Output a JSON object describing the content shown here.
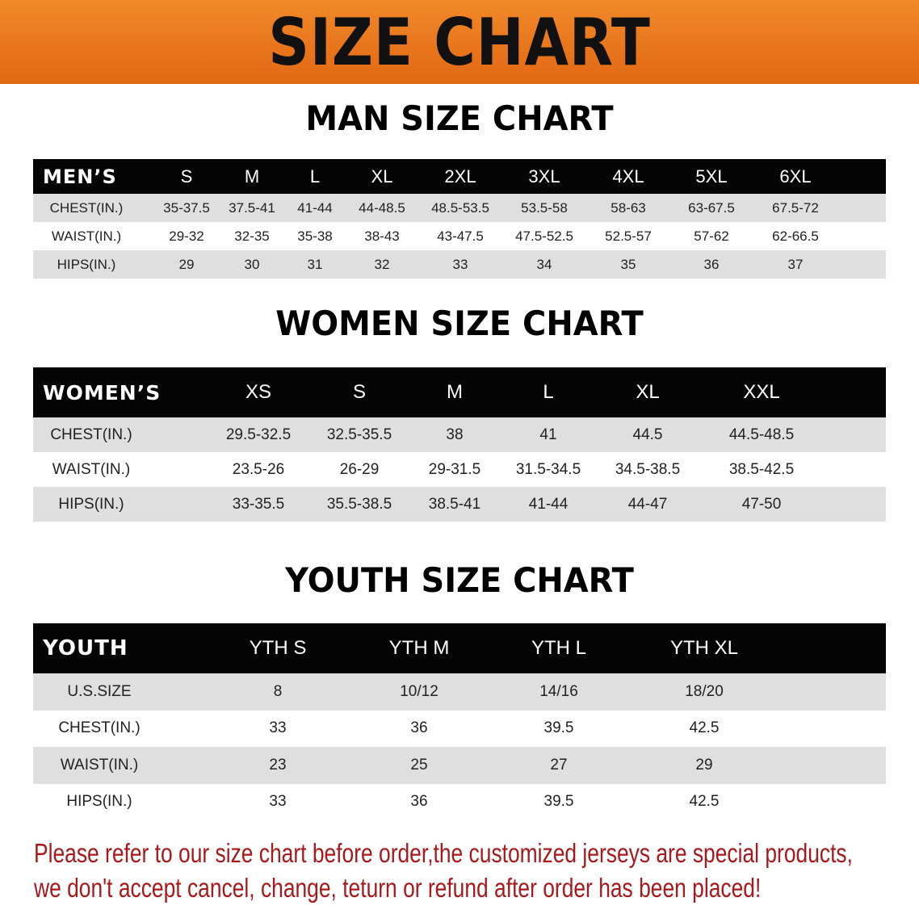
{
  "banner": {
    "title": "SIZE CHART"
  },
  "men": {
    "title": "MAN SIZE CHART",
    "header_label": "MEN’S",
    "sizes": [
      "S",
      "M",
      "L",
      "XL",
      "2XL",
      "3XL",
      "4XL",
      "5XL",
      "6XL"
    ],
    "rows": [
      {
        "label": "CHEST(IN.)",
        "values": [
          "35-37.5",
          "37.5-41",
          "41-44",
          "44-48.5",
          "48.5-53.5",
          "53.5-58",
          "58-63",
          "63-67.5",
          "67.5-72"
        ]
      },
      {
        "label": "WAIST(IN.)",
        "values": [
          "29-32",
          "32-35",
          "35-38",
          "38-43",
          "43-47.5",
          "47.5-52.5",
          "52.5-57",
          "57-62",
          "62-66.5"
        ]
      },
      {
        "label": "HIPS(IN.)",
        "values": [
          "29",
          "30",
          "31",
          "32",
          "33",
          "34",
          "35",
          "36",
          "37"
        ]
      }
    ]
  },
  "women": {
    "title": "WOMEN SIZE CHART",
    "header_label": "WOMEN’S",
    "sizes": [
      "XS",
      "S",
      "M",
      "L",
      "XL",
      "XXL"
    ],
    "rows": [
      {
        "label": "CHEST(IN.)",
        "values": [
          "29.5-32.5",
          "32.5-35.5",
          "38",
          "41",
          "44.5",
          "44.5-48.5"
        ]
      },
      {
        "label": "WAIST(IN.)",
        "values": [
          "23.5-26",
          "26-29",
          "29-31.5",
          "31.5-34.5",
          "34.5-38.5",
          "38.5-42.5"
        ]
      },
      {
        "label": "HIPS(IN.)",
        "values": [
          "33-35.5",
          "35.5-38.5",
          "38.5-41",
          "41-44",
          "44-47",
          "47-50"
        ]
      }
    ]
  },
  "youth": {
    "title": "YOUTH SIZE CHART",
    "header_label": "YOUTH",
    "sizes": [
      "YTH S",
      "YTH M",
      "YTH L",
      "YTH XL"
    ],
    "rows": [
      {
        "label": "U.S.SIZE",
        "values": [
          "8",
          "10/12",
          "14/16",
          "18/20"
        ]
      },
      {
        "label": "CHEST(IN.)",
        "values": [
          "33",
          "36",
          "39.5",
          "42.5"
        ]
      },
      {
        "label": "WAIST(IN.)",
        "values": [
          "23",
          "25",
          "27",
          "29"
        ]
      },
      {
        "label": "HIPS(IN.)",
        "values": [
          "33",
          "36",
          "39.5",
          "42.5"
        ]
      }
    ]
  },
  "notice": {
    "line1": "Please refer to our size chart before order,the customized jerseys are special products,",
    "line2": "we don't accept cancel, change, teturn or refund after order has been placed!"
  },
  "colors": {
    "banner": "#e8741c",
    "header_bg": "#050505",
    "row_gray": "#dfdfdf",
    "notice": "#a8191c"
  }
}
